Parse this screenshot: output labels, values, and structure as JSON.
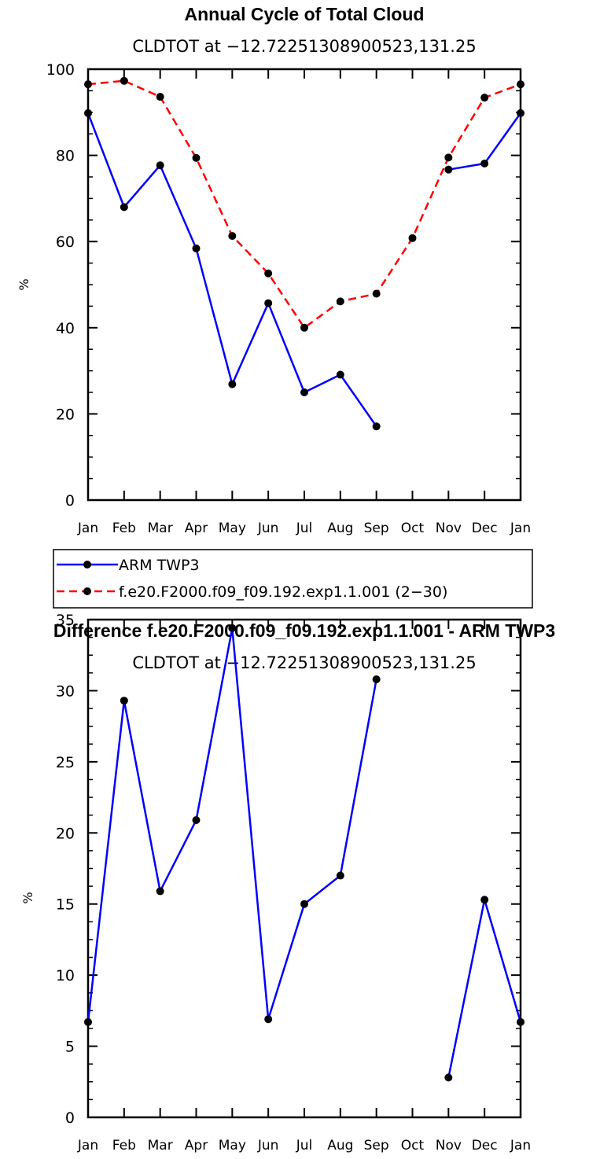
{
  "chart_data": [
    {
      "type": "line",
      "title": "Annual Cycle of Total Cloud",
      "subtitle": "CLDTOT at −12.72251308900523,131.25",
      "ylabel": "%",
      "ylim": [
        0,
        100
      ],
      "yticks": [
        "0",
        "20",
        "40",
        "60",
        "80",
        "100"
      ],
      "categories": [
        "Jan",
        "Feb",
        "Mar",
        "Apr",
        "May",
        "Jun",
        "Jul",
        "Aug",
        "Sep",
        "Oct",
        "Nov",
        "Dec",
        "Jan"
      ],
      "legend_position": "below",
      "series": [
        {
          "name": "ARM TWP3",
          "color": "#0000ff",
          "dash": "solid",
          "values": [
            89.8,
            68.0,
            77.7,
            58.4,
            26.9,
            45.7,
            25.0,
            29.1,
            17.1,
            null,
            76.7,
            78.1,
            89.8
          ]
        },
        {
          "name": "f.e20.F2000.f09_f09.192.exp1.1.001 (2−30)",
          "color": "#ff0000",
          "dash": "dashed",
          "values": [
            96.5,
            97.3,
            93.6,
            79.4,
            61.3,
            52.6,
            40.0,
            46.1,
            47.9,
            60.8,
            79.5,
            93.4,
            96.5
          ]
        }
      ]
    },
    {
      "type": "line",
      "title": "Difference f.e20.F2000.f09_f09.192.exp1.1.001 - ARM TWP3",
      "subtitle": "CLDTOT at −12.72251308900523,131.25",
      "ylabel": "%",
      "ylim": [
        0,
        35
      ],
      "yticks": [
        "0",
        "5",
        "10",
        "15",
        "20",
        "25",
        "30",
        "35"
      ],
      "categories": [
        "Jan",
        "Feb",
        "Mar",
        "Apr",
        "May",
        "Jun",
        "Jul",
        "Aug",
        "Sep",
        "Oct",
        "Nov",
        "Dec",
        "Jan"
      ],
      "series": [
        {
          "color": "#0000ff",
          "dash": "solid",
          "values": [
            6.7,
            29.3,
            15.9,
            20.9,
            34.4,
            6.9,
            15.0,
            17.0,
            30.8,
            null,
            2.8,
            15.3,
            6.7
          ]
        }
      ]
    }
  ]
}
